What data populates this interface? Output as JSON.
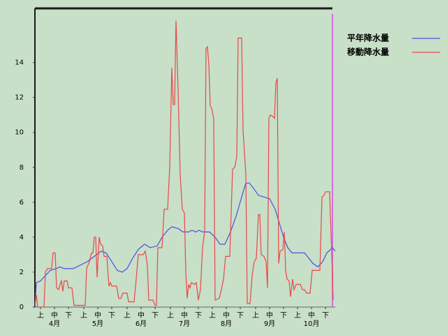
{
  "chart_data": {
    "type": "line",
    "xlim": [
      0,
      215
    ],
    "xticks": [
      {
        "value": 4,
        "label": "上"
      },
      {
        "value": 14,
        "label": "中"
      },
      {
        "value": 24,
        "label": "下"
      },
      {
        "value": 35,
        "label": "上"
      },
      {
        "value": 45,
        "label": "中"
      },
      {
        "value": 55,
        "label": "下"
      },
      {
        "value": 66,
        "label": "上"
      },
      {
        "value": 76,
        "label": "中"
      },
      {
        "value": 86,
        "label": "下"
      },
      {
        "value": 97,
        "label": "上"
      },
      {
        "value": 107,
        "label": "中"
      },
      {
        "value": 117,
        "label": "下"
      },
      {
        "value": 127,
        "label": "上"
      },
      {
        "value": 137,
        "label": "中"
      },
      {
        "value": 147,
        "label": "下"
      },
      {
        "value": 158,
        "label": "上"
      },
      {
        "value": 168,
        "label": "中"
      },
      {
        "value": 178,
        "label": "下"
      },
      {
        "value": 188,
        "label": "上"
      },
      {
        "value": 198,
        "label": "中"
      },
      {
        "value": 208,
        "label": "下"
      }
    ],
    "month_labels": [
      {
        "value": 14,
        "label": "4月"
      },
      {
        "value": 45,
        "label": "5月"
      },
      {
        "value": 76,
        "label": "6月"
      },
      {
        "value": 107,
        "label": "7月"
      },
      {
        "value": 137,
        "label": "8月"
      },
      {
        "value": 168,
        "label": "9月"
      },
      {
        "value": 198,
        "label": "10月"
      }
    ],
    "ylim": [
      0,
      17.1
    ],
    "yticks": [
      0,
      2,
      4,
      6,
      8,
      10,
      12,
      14
    ],
    "legend": "upper right",
    "series": [
      {
        "name": "平年降水量",
        "color": "#4a50e0",
        "x": [
          0,
          1,
          4,
          7.5,
          11,
          15,
          18,
          21,
          27.5,
          32.5,
          37.5,
          42.5,
          47.5,
          51,
          55,
          59,
          62.5,
          66,
          70,
          74,
          78.5,
          82.5,
          87.5,
          91,
          95,
          98,
          102.5,
          106,
          110,
          112.5,
          115,
          117.5,
          120,
          125,
          129,
          132.5,
          136,
          140,
          144,
          148,
          151,
          153.5,
          156.5,
          160,
          164,
          168,
          172,
          175,
          178,
          181,
          184,
          187.5,
          193,
          196,
          199,
          202.5,
          206,
          209,
          213,
          215
        ],
        "values": [
          0,
          1.4,
          1.5,
          1.8,
          2.1,
          2.2,
          2.3,
          2.2,
          2.2,
          2.4,
          2.6,
          2.9,
          3.2,
          3.1,
          2.6,
          2.1,
          2.0,
          2.2,
          2.8,
          3.3,
          3.6,
          3.4,
          3.5,
          4.0,
          4.4,
          4.6,
          4.5,
          4.3,
          4.3,
          4.4,
          4.3,
          4.4,
          4.3,
          4.3,
          4.0,
          3.6,
          3.6,
          4.3,
          5.2,
          6.3,
          7.1,
          7.1,
          6.8,
          6.4,
          6.3,
          6.2,
          5.6,
          4.8,
          4.0,
          3.4,
          3.1,
          3.1,
          3.1,
          2.8,
          2.5,
          2.3,
          2.6,
          3.1,
          3.4,
          3.2
        ]
      },
      {
        "name": "移動降水量",
        "color": "#e84848",
        "x": [
          0,
          1,
          2,
          6.5,
          7.5,
          9,
          12,
          13,
          14.5,
          15.5,
          17,
          18,
          19,
          20,
          21,
          23,
          24,
          26.5,
          28,
          36,
          37,
          39,
          40.5,
          41.5,
          42.5,
          43.5,
          44.5,
          46,
          47,
          48.5,
          49.5,
          51.5,
          53,
          54,
          55,
          58.5,
          60,
          61.5,
          63,
          66,
          67,
          71,
          72.5,
          74,
          77.5,
          79,
          80.5,
          81.5,
          84.5,
          86,
          87,
          88,
          91,
          92.5,
          95,
          96.5,
          98,
          99,
          100,
          101,
          102.5,
          104,
          105.5,
          107,
          108,
          109,
          110,
          111,
          112,
          114,
          115.5,
          117,
          118.5,
          120,
          121.5,
          122.5,
          123.5,
          124.5,
          125.5,
          126.5,
          128,
          129,
          132,
          133.5,
          135,
          136.5,
          139.5,
          141.5,
          143,
          144.5,
          145.5,
          148,
          149,
          151,
          152,
          154,
          155.5,
          157,
          158.5,
          160,
          161,
          162,
          164,
          165.5,
          166.5,
          167.5,
          168.5,
          170.5,
          171.5,
          172.5,
          173.5,
          174.5,
          175.5,
          177.5,
          178.5,
          179.5,
          180.5,
          182,
          183,
          184.5,
          185.5,
          187,
          190,
          191.5,
          193,
          194.5,
          197,
          198.5,
          204,
          205.5,
          207,
          208,
          211,
          212.5,
          213.5
        ],
        "values": [
          0.1,
          0.7,
          0,
          0,
          2.0,
          2.2,
          2.2,
          3.1,
          3.1,
          1.1,
          1.0,
          1.3,
          1.5,
          0.9,
          1.5,
          1.5,
          1.1,
          1.1,
          0.1,
          0.1,
          2.2,
          2.6,
          3.1,
          3.1,
          4.0,
          4.0,
          1.7,
          4.0,
          3.6,
          3.5,
          2.9,
          2.9,
          1.2,
          1.4,
          1.2,
          1.2,
          0.5,
          0.5,
          0.8,
          0.8,
          0.3,
          0.3,
          1.6,
          3.0,
          3.0,
          3.2,
          2.4,
          0.4,
          0.4,
          0.1,
          0.1,
          3.4,
          3.4,
          5.6,
          5.6,
          8.0,
          13.7,
          11.6,
          11.6,
          16.4,
          12.4,
          7.6,
          5.6,
          5.4,
          2.0,
          0.5,
          1.3,
          1.1,
          1.4,
          1.3,
          1.4,
          0.4,
          1.0,
          3.4,
          4.3,
          14.8,
          14.9,
          13.9,
          11.5,
          11.4,
          10.8,
          0.4,
          0.5,
          1.0,
          1.6,
          2.9,
          2.9,
          7.9,
          8.0,
          8.6,
          15.4,
          15.4,
          10.1,
          7.6,
          0.2,
          0.2,
          1.8,
          2.6,
          2.8,
          5.3,
          5.3,
          3.0,
          2.9,
          2.6,
          1.1,
          10.8,
          11.0,
          10.9,
          10.8,
          12.8,
          13.1,
          2.5,
          3.2,
          3.3,
          4.3,
          2.1,
          1.6,
          1.5,
          0.6,
          1.6,
          1.0,
          1.3,
          1.3,
          1.0,
          1.0,
          0.8,
          0.8,
          2.1,
          2.1,
          6.3,
          6.4,
          6.6,
          6.6,
          3.0,
          0.4
        ]
      }
    ]
  }
}
